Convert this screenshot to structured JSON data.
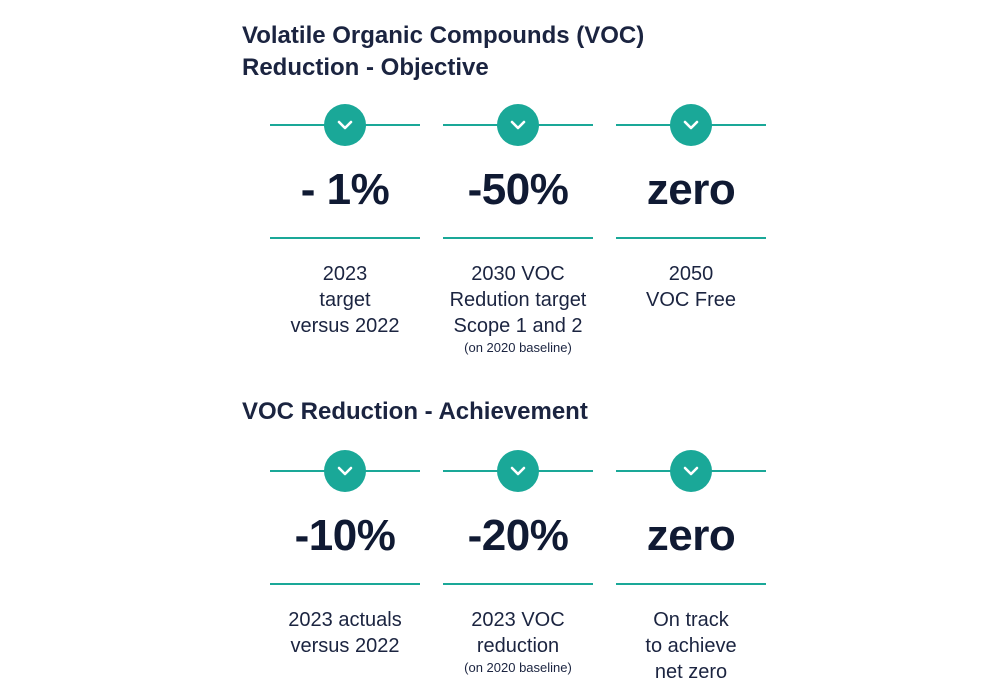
{
  "objective": {
    "title_lines": [
      "Volatile Organic Compounds (VOC)",
      "Reduction - Objective"
    ],
    "cards": [
      {
        "value": "- 1%",
        "lines": [
          "2023",
          "target",
          "versus 2022"
        ],
        "note": ""
      },
      {
        "value": "-50%",
        "lines": [
          "2030 VOC",
          "Redution target",
          "Scope 1 and 2"
        ],
        "note": "(on 2020 baseline)"
      },
      {
        "value": "zero",
        "lines": [
          "2050",
          "VOC Free"
        ],
        "note": ""
      }
    ]
  },
  "achievement": {
    "title_lines": [
      "VOC Reduction - Achievement"
    ],
    "cards": [
      {
        "value": "-10%",
        "lines": [
          "2023 actuals",
          "versus 2022"
        ],
        "note": ""
      },
      {
        "value": "-20%",
        "lines": [
          "2023 VOC",
          "reduction"
        ],
        "note": "(on 2020 baseline)"
      },
      {
        "value": "zero",
        "lines": [
          "On track",
          "to achieve",
          "net zero"
        ],
        "note": ""
      }
    ]
  },
  "colors": {
    "accent": "#1aa898",
    "text": "#1b2440"
  },
  "icons": {
    "badge": "chevron-down-icon"
  }
}
